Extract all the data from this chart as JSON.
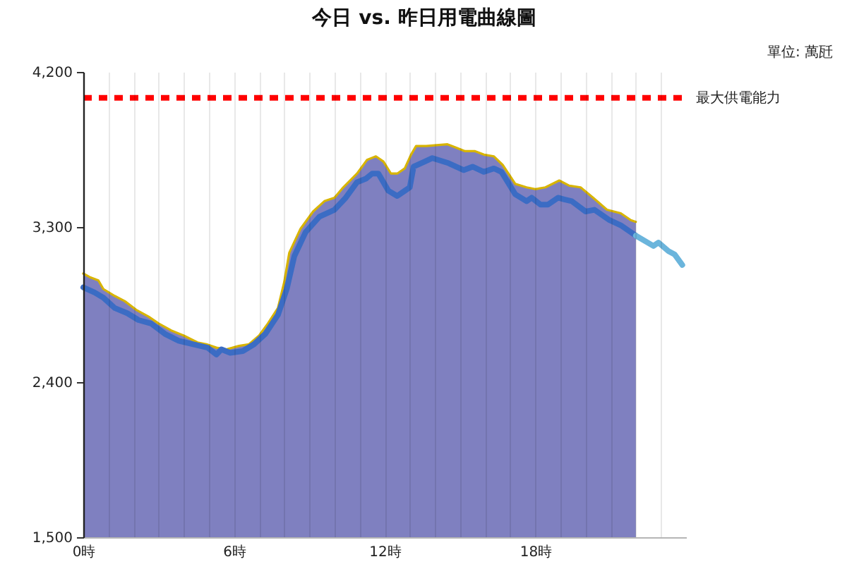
{
  "chart_data": {
    "type": "area",
    "title": "今日 vs. 昨日用電曲線圖",
    "subtitle": "單位: 萬瓩",
    "xlim": [
      0,
      24
    ],
    "xticks": [
      {
        "value": 0,
        "label": "0時"
      },
      {
        "value": 1,
        "label": null
      },
      {
        "value": 2,
        "label": null
      },
      {
        "value": 3,
        "label": null
      },
      {
        "value": 4,
        "label": null
      },
      {
        "value": 5,
        "label": null
      },
      {
        "value": 6,
        "label": "6時"
      },
      {
        "value": 7,
        "label": null
      },
      {
        "value": 8,
        "label": null
      },
      {
        "value": 9,
        "label": null
      },
      {
        "value": 10,
        "label": null
      },
      {
        "value": 11,
        "label": null
      },
      {
        "value": 12,
        "label": "12時"
      },
      {
        "value": 13,
        "label": null
      },
      {
        "value": 14,
        "label": null
      },
      {
        "value": 15,
        "label": null
      },
      {
        "value": 16,
        "label": null
      },
      {
        "value": 17,
        "label": null
      },
      {
        "value": 18,
        "label": "18時"
      },
      {
        "value": 19,
        "label": null
      },
      {
        "value": 20,
        "label": null
      },
      {
        "value": 21,
        "label": null
      },
      {
        "value": 22,
        "label": null
      },
      {
        "value": 23,
        "label": null
      }
    ],
    "ylim": [
      1500,
      4200
    ],
    "yticks": [
      {
        "value": 1500,
        "label": "1,500"
      },
      {
        "value": 2400,
        "label": "2,400"
      },
      {
        "value": 3300,
        "label": "3,300"
      },
      {
        "value": 4200,
        "label": "4,200"
      }
    ],
    "grid": "x",
    "series": [
      {
        "color": "#7f80c0",
        "x": [
          0,
          0.25,
          0.6,
          0.8,
          1.25,
          1.65,
          2.1,
          2.6,
          3.0,
          3.5,
          4.0,
          4.55,
          4.9,
          5.3,
          5.7,
          6.2,
          6.6,
          7.0,
          7.35,
          7.75,
          8.0,
          8.2,
          8.65,
          9.15,
          9.6,
          10.0,
          10.35,
          10.9,
          11.3,
          11.65,
          11.95,
          12.25,
          12.5,
          12.8,
          13.05,
          13.25,
          13.65,
          14.5,
          14.85,
          15.2,
          15.6,
          15.95,
          16.35,
          16.7,
          17.2,
          17.65,
          18.0,
          18.4,
          18.95,
          19.35,
          19.8,
          20.3,
          20.85,
          21.4,
          21.8,
          22.0
        ],
        "values": [
          3030,
          3010,
          2990,
          2940,
          2900,
          2870,
          2820,
          2780,
          2740,
          2700,
          2670,
          2630,
          2620,
          2600,
          2590,
          2610,
          2620,
          2670,
          2740,
          2830,
          2980,
          3150,
          3290,
          3390,
          3450,
          3470,
          3530,
          3610,
          3690,
          3710,
          3680,
          3610,
          3610,
          3640,
          3720,
          3770,
          3770,
          3780,
          3760,
          3740,
          3740,
          3720,
          3710,
          3660,
          3550,
          3530,
          3520,
          3530,
          3570,
          3540,
          3530,
          3470,
          3400,
          3380,
          3340,
          3330
        ]
      },
      {
        "type": "line",
        "color": "#d8b400",
        "x": [
          0,
          0.25,
          0.6,
          0.8,
          1.25,
          1.65,
          2.1,
          2.6,
          3.0,
          3.5,
          4.0,
          4.55,
          4.9,
          5.3,
          5.7,
          6.2,
          6.6,
          7.0,
          7.35,
          7.75,
          8.0,
          8.2,
          8.65,
          9.15,
          9.6,
          10.0,
          10.35,
          10.9,
          11.3,
          11.65,
          11.95,
          12.25,
          12.5,
          12.8,
          13.05,
          13.25,
          13.65,
          14.5,
          14.85,
          15.2,
          15.6,
          15.95,
          16.35,
          16.7,
          17.2,
          17.65,
          18.0,
          18.4,
          18.95,
          19.35,
          19.8,
          20.3,
          20.85,
          21.4,
          21.8,
          22.0
        ],
        "values": [
          3030,
          3010,
          2990,
          2940,
          2900,
          2870,
          2820,
          2780,
          2740,
          2700,
          2670,
          2630,
          2620,
          2600,
          2590,
          2610,
          2620,
          2670,
          2740,
          2830,
          2980,
          3150,
          3290,
          3390,
          3450,
          3470,
          3530,
          3610,
          3690,
          3710,
          3680,
          3610,
          3610,
          3640,
          3720,
          3770,
          3770,
          3780,
          3760,
          3740,
          3740,
          3720,
          3710,
          3660,
          3550,
          3530,
          3520,
          3530,
          3570,
          3540,
          3530,
          3470,
          3400,
          3380,
          3340,
          3330
        ]
      },
      {
        "type": "line",
        "color": "#3b6cc4",
        "x": [
          0,
          0.45,
          0.8,
          1.25,
          1.75,
          2.2,
          2.7,
          3.25,
          3.8,
          4.35,
          4.95,
          5.3,
          5.5,
          5.85,
          6.35,
          6.8,
          7.25,
          7.75,
          8.1,
          8.4,
          8.85,
          9.4,
          10.0,
          10.45,
          10.9,
          11.25,
          11.5,
          11.75,
          12.15,
          12.5,
          12.8,
          13.0,
          13.15,
          13.6,
          13.9,
          14.55,
          15.15,
          15.5,
          15.95,
          16.35,
          16.65,
          17.2,
          17.65,
          17.85,
          18.2,
          18.5,
          18.9,
          19.15,
          19.45,
          20.0,
          20.35,
          20.95,
          21.4,
          22.0
        ],
        "values": [
          2950,
          2920,
          2890,
          2830,
          2800,
          2760,
          2740,
          2680,
          2640,
          2620,
          2600,
          2560,
          2590,
          2570,
          2580,
          2620,
          2680,
          2790,
          2940,
          3130,
          3270,
          3360,
          3400,
          3470,
          3560,
          3580,
          3610,
          3610,
          3510,
          3480,
          3510,
          3530,
          3650,
          3680,
          3700,
          3670,
          3630,
          3650,
          3620,
          3640,
          3620,
          3490,
          3450,
          3470,
          3430,
          3430,
          3470,
          3460,
          3450,
          3390,
          3400,
          3340,
          3310,
          3250
        ]
      },
      {
        "type": "line",
        "color": "#6bb5dc",
        "x": [
          22.0,
          22.7,
          22.9,
          23.3,
          23.55,
          23.85
        ],
        "values": [
          3250,
          3190,
          3210,
          3160,
          3140,
          3080
        ]
      }
    ],
    "ref_lines": [
      {
        "axis": "y",
        "value": 4050,
        "label": "最大供電能力",
        "color": "#ff0000",
        "line_style": "dotted"
      }
    ]
  }
}
